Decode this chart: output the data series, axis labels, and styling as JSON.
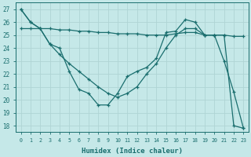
{
  "xlabel": "Humidex (Indice chaleur)",
  "bg_color": "#c5e8e8",
  "grid_color": "#afd4d4",
  "line_color": "#1a6e6e",
  "xlim_min": -0.5,
  "xlim_max": 23.5,
  "ylim_min": 17.5,
  "ylim_max": 27.5,
  "yticks": [
    18,
    19,
    20,
    21,
    22,
    23,
    24,
    25,
    26,
    27
  ],
  "xticks": [
    0,
    1,
    2,
    3,
    4,
    5,
    6,
    7,
    8,
    9,
    10,
    11,
    12,
    13,
    14,
    15,
    16,
    17,
    18,
    19,
    20,
    21,
    22,
    23
  ],
  "line_zigzag_x": [
    0,
    1,
    2,
    3,
    4,
    5,
    6,
    7,
    8,
    9,
    10,
    11,
    12,
    13,
    14,
    15,
    16,
    17,
    18,
    19,
    20,
    21,
    22,
    23
  ],
  "line_zigzag_y": [
    27.0,
    26.0,
    25.5,
    24.3,
    24.0,
    22.2,
    20.8,
    20.5,
    19.6,
    19.6,
    20.5,
    21.8,
    22.2,
    22.5,
    23.2,
    25.2,
    25.3,
    26.2,
    26.0,
    25.0,
    25.0,
    23.0,
    20.6,
    17.8
  ],
  "line_flat_x": [
    0,
    1,
    2,
    3,
    4,
    5,
    6,
    7,
    8,
    9,
    10,
    11,
    12,
    13,
    14,
    15,
    16,
    17,
    18,
    19,
    20,
    21,
    22,
    23
  ],
  "line_flat_y": [
    25.5,
    25.5,
    25.5,
    25.5,
    25.4,
    25.4,
    25.3,
    25.3,
    25.2,
    25.2,
    25.1,
    25.1,
    25.1,
    25.0,
    25.0,
    25.0,
    25.1,
    25.2,
    25.2,
    25.0,
    25.0,
    25.0,
    24.9,
    24.9
  ],
  "line_diag_x": [
    0,
    1,
    2,
    3,
    4,
    5,
    6,
    7,
    8,
    9,
    10,
    11,
    12,
    13,
    14,
    15,
    16,
    17,
    18,
    19,
    20,
    21,
    22,
    23
  ],
  "line_diag_y": [
    27.0,
    26.0,
    25.5,
    24.3,
    23.5,
    22.8,
    22.2,
    21.6,
    21.0,
    20.5,
    20.2,
    20.5,
    21.0,
    22.0,
    22.8,
    24.0,
    25.0,
    25.5,
    25.5,
    25.0,
    25.0,
    25.0,
    18.0,
    17.8
  ]
}
